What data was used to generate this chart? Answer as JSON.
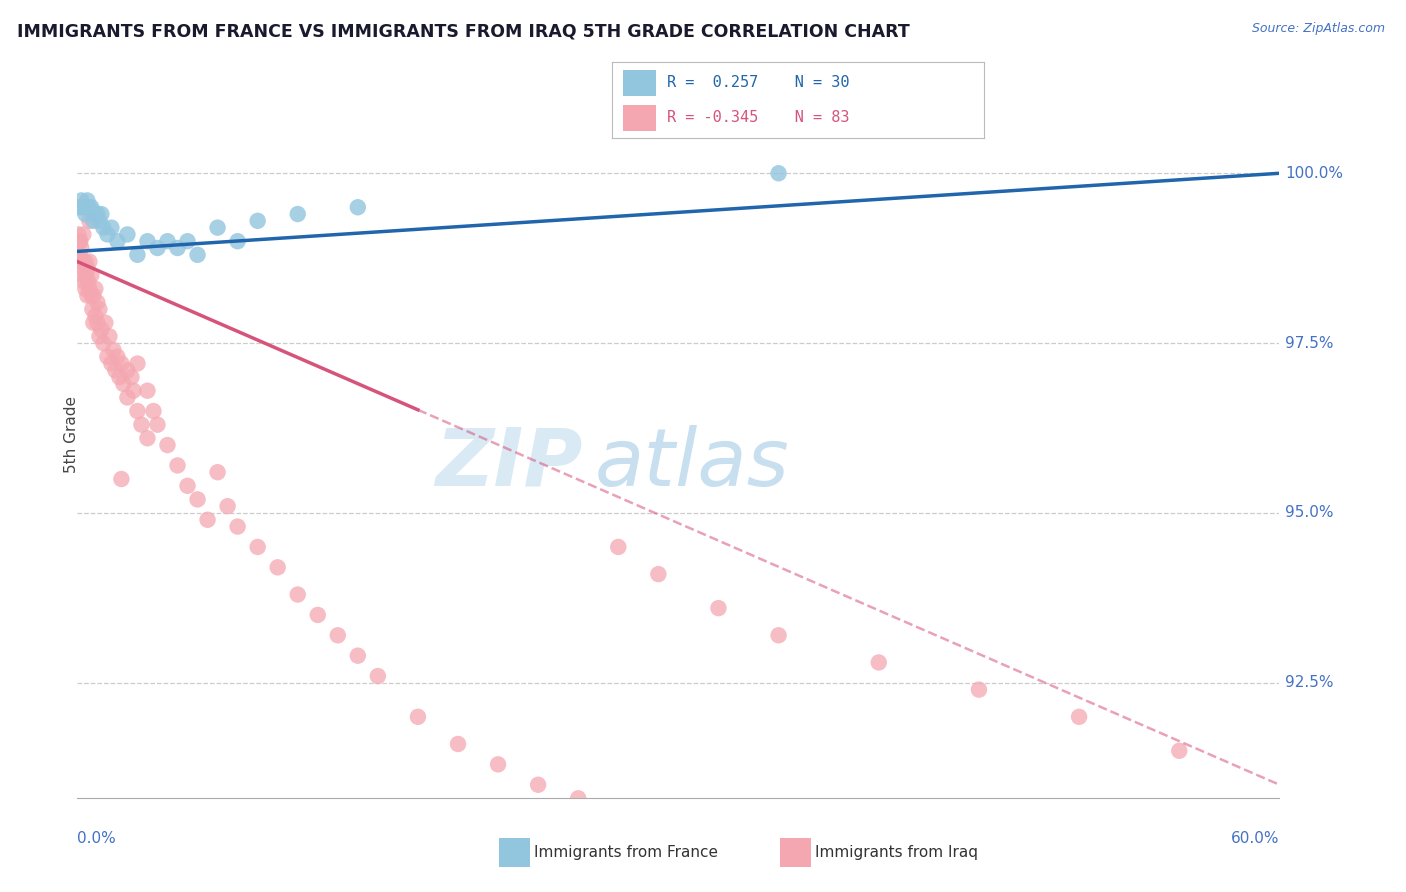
{
  "title": "IMMIGRANTS FROM FRANCE VS IMMIGRANTS FROM IRAQ 5TH GRADE CORRELATION CHART",
  "source": "Source: ZipAtlas.com",
  "ylabel": "5th Grade",
  "xmin": 0.0,
  "xmax": 60.0,
  "ymin": 90.8,
  "ymax": 101.5,
  "ytick_vals": [
    92.5,
    95.0,
    97.5,
    100.0
  ],
  "ytick_labels": [
    "92.5%",
    "95.0%",
    "97.5%",
    "100.0%"
  ],
  "legend_france": "Immigrants from France",
  "legend_iraq": "Immigrants from Iraq",
  "r_france": 0.257,
  "n_france": 30,
  "r_iraq": -0.345,
  "n_iraq": 83,
  "color_france": "#92c5de",
  "color_iraq": "#f4a7b0",
  "color_france_line": "#2166ac",
  "color_iraq_line": "#d6547a",
  "color_axis_labels": "#4472c4",
  "france_x": [
    0.1,
    0.2,
    0.3,
    0.4,
    0.5,
    0.6,
    0.7,
    0.8,
    0.9,
    1.0,
    1.1,
    1.2,
    1.3,
    1.5,
    1.7,
    2.0,
    2.5,
    3.0,
    3.5,
    4.0,
    4.5,
    5.0,
    5.5,
    6.0,
    7.0,
    8.0,
    9.0,
    11.0,
    14.0,
    35.0
  ],
  "france_y": [
    99.5,
    99.6,
    99.5,
    99.4,
    99.6,
    99.5,
    99.5,
    99.3,
    99.4,
    99.4,
    99.3,
    99.4,
    99.2,
    99.1,
    99.2,
    99.0,
    99.1,
    98.8,
    99.0,
    98.9,
    99.0,
    98.9,
    99.0,
    98.8,
    99.2,
    99.0,
    99.3,
    99.4,
    99.5,
    100.0
  ],
  "iraq_x": [
    0.05,
    0.1,
    0.1,
    0.15,
    0.15,
    0.2,
    0.2,
    0.25,
    0.3,
    0.3,
    0.35,
    0.4,
    0.4,
    0.45,
    0.5,
    0.5,
    0.55,
    0.6,
    0.6,
    0.7,
    0.7,
    0.75,
    0.8,
    0.8,
    0.9,
    0.9,
    1.0,
    1.0,
    1.1,
    1.1,
    1.2,
    1.3,
    1.4,
    1.5,
    1.6,
    1.7,
    1.8,
    1.9,
    2.0,
    2.1,
    2.2,
    2.3,
    2.5,
    2.5,
    2.7,
    2.8,
    3.0,
    3.0,
    3.2,
    3.5,
    3.5,
    3.8,
    4.0,
    4.5,
    5.0,
    5.5,
    6.0,
    6.5,
    7.0,
    7.5,
    8.0,
    9.0,
    10.0,
    11.0,
    12.0,
    13.0,
    14.0,
    15.0,
    17.0,
    19.0,
    21.0,
    23.0,
    25.0,
    27.0,
    29.0,
    32.0,
    35.0,
    40.0,
    45.0,
    50.0,
    55.0,
    2.2,
    0.6
  ],
  "iraq_y": [
    99.1,
    99.0,
    98.8,
    98.7,
    99.0,
    98.6,
    98.9,
    98.5,
    98.7,
    99.1,
    98.4,
    98.7,
    98.3,
    98.5,
    98.6,
    98.2,
    98.4,
    98.3,
    98.7,
    98.2,
    98.5,
    98.0,
    98.2,
    97.8,
    97.9,
    98.3,
    97.8,
    98.1,
    97.6,
    98.0,
    97.7,
    97.5,
    97.8,
    97.3,
    97.6,
    97.2,
    97.4,
    97.1,
    97.3,
    97.0,
    97.2,
    96.9,
    97.1,
    96.7,
    97.0,
    96.8,
    96.5,
    97.2,
    96.3,
    96.8,
    96.1,
    96.5,
    96.3,
    96.0,
    95.7,
    95.4,
    95.2,
    94.9,
    95.6,
    95.1,
    94.8,
    94.5,
    94.2,
    93.8,
    93.5,
    93.2,
    92.9,
    92.6,
    92.0,
    91.6,
    91.3,
    91.0,
    90.8,
    94.5,
    94.1,
    93.6,
    93.2,
    92.8,
    92.4,
    92.0,
    91.5,
    95.5,
    99.3
  ],
  "france_trend_x0": 0.0,
  "france_trend_y0": 98.85,
  "france_trend_x1": 60.0,
  "france_trend_y1": 100.0,
  "iraq_trend_x0": 0.0,
  "iraq_trend_y0": 98.7,
  "iraq_trend_solid_end": 17.0,
  "iraq_trend_x1": 60.0,
  "iraq_trend_y1": 91.0
}
